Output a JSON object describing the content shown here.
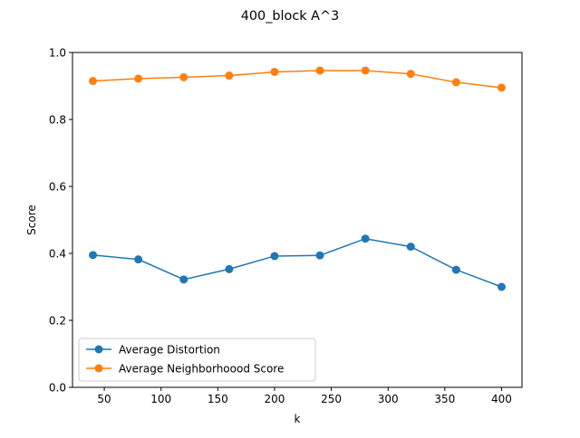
{
  "chart_data": {
    "type": "line",
    "title": "400_block A^3",
    "xlabel": "k",
    "ylabel": "Score",
    "xlim": [
      22,
      418
    ],
    "ylim": [
      0.0,
      1.0
    ],
    "xticks": [
      50,
      100,
      150,
      200,
      250,
      300,
      350,
      400
    ],
    "xtick_labels": [
      "50",
      "100",
      "150",
      "200",
      "250",
      "300",
      "350",
      "400"
    ],
    "yticks": [
      0.0,
      0.2,
      0.4,
      0.6,
      0.8,
      1.0
    ],
    "ytick_labels": [
      "0.0",
      "0.2",
      "0.4",
      "0.6",
      "0.8",
      "1.0"
    ],
    "grid": false,
    "legend_position": "lower-left",
    "x": [
      40,
      80,
      120,
      160,
      200,
      240,
      280,
      320,
      360,
      400
    ],
    "series": [
      {
        "name": "Average Distortion",
        "color": "#1f77b4",
        "values": [
          0.395,
          0.382,
          0.322,
          0.353,
          0.392,
          0.394,
          0.444,
          0.42,
          0.351,
          0.3
        ]
      },
      {
        "name": "Average Neighborhoood Score",
        "color": "#ff7f0e",
        "values": [
          0.915,
          0.922,
          0.926,
          0.931,
          0.942,
          0.946,
          0.946,
          0.936,
          0.911,
          0.895
        ]
      }
    ]
  }
}
